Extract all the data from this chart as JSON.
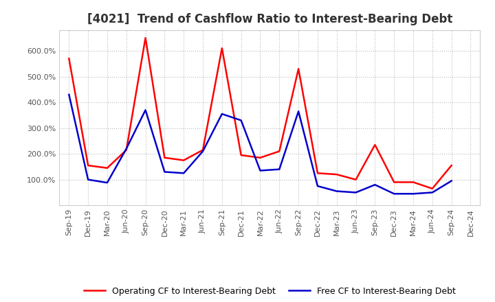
{
  "title": "[4021]  Trend of Cashflow Ratio to Interest-Bearing Debt",
  "x_labels": [
    "Sep-19",
    "Dec-19",
    "Mar-20",
    "Jun-20",
    "Sep-20",
    "Dec-20",
    "Mar-21",
    "Jun-21",
    "Sep-21",
    "Dec-21",
    "Mar-22",
    "Jun-22",
    "Sep-22",
    "Dec-22",
    "Mar-23",
    "Jun-23",
    "Sep-23",
    "Dec-23",
    "Mar-24",
    "Jun-24",
    "Sep-24",
    "Dec-24"
  ],
  "operating_cf": [
    570,
    155,
    145,
    215,
    650,
    185,
    175,
    215,
    610,
    195,
    185,
    210,
    530,
    125,
    120,
    100,
    235,
    90,
    90,
    65,
    155,
    null
  ],
  "free_cf": [
    430,
    100,
    88,
    220,
    370,
    130,
    125,
    210,
    355,
    330,
    135,
    140,
    365,
    75,
    55,
    50,
    80,
    45,
    45,
    50,
    95,
    null
  ],
  "operating_color": "#ff0000",
  "free_color": "#0000cc",
  "background_color": "#ffffff",
  "grid_color": "#bbbbbb",
  "legend_operating": "Operating CF to Interest-Bearing Debt",
  "legend_free": "Free CF to Interest-Bearing Debt",
  "ylim": [
    0,
    680
  ],
  "yticks": [
    100,
    200,
    300,
    400,
    500,
    600
  ],
  "title_fontsize": 12,
  "tick_fontsize": 8,
  "legend_fontsize": 9
}
